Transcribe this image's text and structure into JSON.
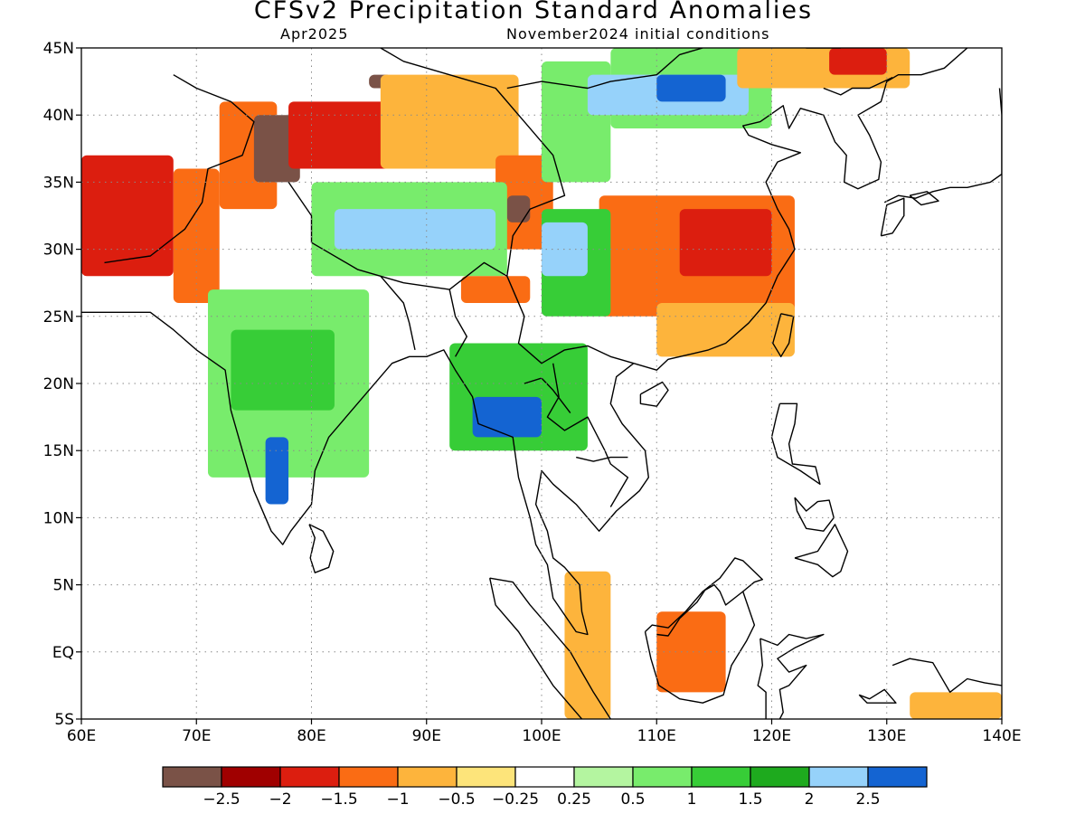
{
  "title": "CFSv2 Precipitation Standard Anomalies",
  "valid_month": "Apr2025",
  "initial_conditions": "November2024 initial conditions",
  "map": {
    "lon_range": [
      60,
      140
    ],
    "lat_range": [
      -5,
      45
    ],
    "lon_ticks": [
      {
        "value": 60,
        "label": "60E"
      },
      {
        "value": 70,
        "label": "70E"
      },
      {
        "value": 80,
        "label": "80E"
      },
      {
        "value": 90,
        "label": "90E"
      },
      {
        "value": 100,
        "label": "100E"
      },
      {
        "value": 110,
        "label": "110E"
      },
      {
        "value": 120,
        "label": "120E"
      },
      {
        "value": 130,
        "label": "130E"
      },
      {
        "value": 140,
        "label": "140E"
      }
    ],
    "lat_ticks": [
      {
        "value": 45,
        "label": "45N"
      },
      {
        "value": 40,
        "label": "40N"
      },
      {
        "value": 35,
        "label": "35N"
      },
      {
        "value": 30,
        "label": "30N"
      },
      {
        "value": 25,
        "label": "25N"
      },
      {
        "value": 20,
        "label": "20N"
      },
      {
        "value": 15,
        "label": "15N"
      },
      {
        "value": 10,
        "label": "10N"
      },
      {
        "value": 5,
        "label": "5N"
      },
      {
        "value": 0,
        "label": "EQ"
      },
      {
        "value": -5,
        "label": "5S"
      }
    ],
    "gridlines": true
  },
  "colorbar": {
    "colors": [
      "#7a5247",
      "#a00000",
      "#dc1e0f",
      "#fa6c14",
      "#fdb43c",
      "#fde47a",
      "#ffffff",
      "#b4f5a0",
      "#78ec6c",
      "#37cd37",
      "#1eaa1e",
      "#96d2fa",
      "#1464d2"
    ],
    "labels": [
      "-2.5",
      "-2",
      "-1.5",
      "-1",
      "-0.5",
      "-0.25",
      "0.25",
      "0.5",
      "1",
      "1.5",
      "2",
      "2.5"
    ]
  },
  "anomaly_regions": [
    {
      "category": 2,
      "lon": [
        60,
        68
      ],
      "lat": [
        28,
        37
      ]
    },
    {
      "category": 3,
      "lon": [
        68,
        72
      ],
      "lat": [
        26,
        36
      ]
    },
    {
      "category": 3,
      "lon": [
        72,
        77
      ],
      "lat": [
        33,
        41
      ]
    },
    {
      "category": 0,
      "lon": [
        75,
        79
      ],
      "lat": [
        35,
        40
      ]
    },
    {
      "category": 2,
      "lon": [
        78,
        88
      ],
      "lat": [
        36,
        41
      ]
    },
    {
      "category": 0,
      "lon": [
        85,
        87
      ],
      "lat": [
        42,
        43
      ]
    },
    {
      "category": 4,
      "lon": [
        86,
        98
      ],
      "lat": [
        36,
        43
      ]
    },
    {
      "category": 3,
      "lon": [
        96,
        101
      ],
      "lat": [
        30,
        37
      ]
    },
    {
      "category": 0,
      "lon": [
        97,
        99
      ],
      "lat": [
        32,
        34
      ]
    },
    {
      "category": 8,
      "lon": [
        80,
        97
      ],
      "lat": [
        28,
        35
      ]
    },
    {
      "category": 11,
      "lon": [
        82,
        96
      ],
      "lat": [
        30,
        33
      ]
    },
    {
      "category": 8,
      "lon": [
        100,
        106
      ],
      "lat": [
        35,
        44
      ]
    },
    {
      "category": 8,
      "lon": [
        106,
        120
      ],
      "lat": [
        39,
        45
      ]
    },
    {
      "category": 11,
      "lon": [
        104,
        118
      ],
      "lat": [
        40,
        43
      ]
    },
    {
      "category": 12,
      "lon": [
        110,
        116
      ],
      "lat": [
        41,
        43
      ]
    },
    {
      "category": 3,
      "lon": [
        105,
        122
      ],
      "lat": [
        25,
        34
      ]
    },
    {
      "category": 2,
      "lon": [
        112,
        120
      ],
      "lat": [
        28,
        33
      ]
    },
    {
      "category": 4,
      "lon": [
        110,
        122
      ],
      "lat": [
        22,
        26
      ]
    },
    {
      "category": 9,
      "lon": [
        100,
        106
      ],
      "lat": [
        25,
        33
      ]
    },
    {
      "category": 11,
      "lon": [
        100,
        104
      ],
      "lat": [
        28,
        32
      ]
    },
    {
      "category": 4,
      "lon": [
        117,
        132
      ],
      "lat": [
        42,
        45
      ]
    },
    {
      "category": 2,
      "lon": [
        125,
        130
      ],
      "lat": [
        43,
        45
      ]
    },
    {
      "category": 8,
      "lon": [
        71,
        85
      ],
      "lat": [
        13,
        27
      ]
    },
    {
      "category": 9,
      "lon": [
        73,
        82
      ],
      "lat": [
        18,
        24
      ]
    },
    {
      "category": 12,
      "lon": [
        76,
        78
      ],
      "lat": [
        11,
        16
      ]
    },
    {
      "category": 9,
      "lon": [
        92,
        104
      ],
      "lat": [
        15,
        23
      ]
    },
    {
      "category": 12,
      "lon": [
        94,
        100
      ],
      "lat": [
        16,
        19
      ]
    },
    {
      "category": 3,
      "lon": [
        93,
        99
      ],
      "lat": [
        26,
        28
      ]
    },
    {
      "category": 4,
      "lon": [
        102,
        106
      ],
      "lat": [
        -5,
        6
      ]
    },
    {
      "category": 3,
      "lon": [
        110,
        116
      ],
      "lat": [
        -3,
        3
      ]
    },
    {
      "category": 4,
      "lon": [
        132,
        140
      ],
      "lat": [
        -5,
        -3
      ]
    }
  ]
}
